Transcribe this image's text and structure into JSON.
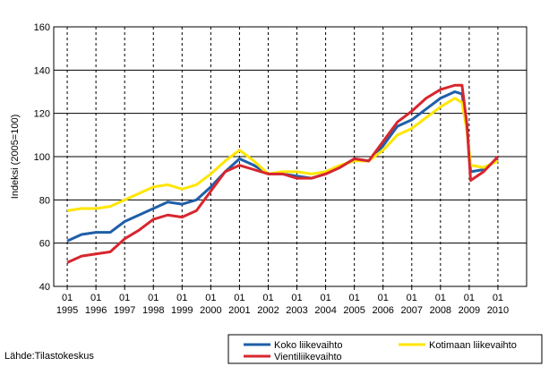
{
  "chart_data": {
    "type": "line",
    "y_label": "Indeksi (2005=100)",
    "source": "Lähde:Tilastokeskus",
    "x": [
      1995,
      1995.5,
      1996,
      1996.5,
      1997,
      1997.5,
      1998,
      1998.5,
      1999,
      1999.5,
      2000,
      2000.5,
      2001,
      2001.5,
      2002,
      2002.5,
      2003,
      2003.5,
      2004,
      2004.5,
      2005,
      2005.5,
      2006,
      2006.5,
      2007,
      2007.5,
      2008,
      2008.5,
      2008.75,
      2008.92,
      2009.05,
      2009.5,
      2010
    ],
    "series": [
      {
        "name": "Koko liikevaihto",
        "color": "#1f5fa8",
        "values": [
          61,
          64,
          65,
          65,
          70,
          73,
          76,
          79,
          78,
          80,
          86,
          93,
          99,
          96,
          92,
          92,
          91,
          90,
          92,
          95,
          99,
          98,
          105,
          114,
          117,
          122,
          127,
          130,
          129,
          115,
          93,
          94,
          99
        ]
      },
      {
        "name": "Kotimaan liikevaihto",
        "color": "#ffe600",
        "values": [
          75,
          76,
          76,
          77,
          80,
          83,
          86,
          87,
          85,
          87,
          92,
          98,
          103,
          98,
          92,
          93,
          93,
          92,
          93,
          96,
          98,
          98,
          103,
          110,
          113,
          118,
          123,
          127,
          125,
          112,
          96,
          95,
          98
        ]
      },
      {
        "name": "Vientiliikevaihto",
        "color": "#d8262e",
        "values": [
          51,
          54,
          55,
          56,
          62,
          66,
          71,
          73,
          72,
          75,
          84,
          93,
          96,
          94,
          92,
          92,
          90,
          90,
          92,
          95,
          99,
          98,
          107,
          116,
          121,
          127,
          131,
          133,
          133,
          115,
          89,
          93,
          100
        ]
      }
    ],
    "xlim": [
      1994.53,
      2011
    ],
    "xticks": [
      {
        "value": 1995,
        "label": "01\n1995"
      },
      {
        "value": 1996,
        "label": "01\n1996"
      },
      {
        "value": 1997,
        "label": "01\n1997"
      },
      {
        "value": 1998,
        "label": "01\n1998"
      },
      {
        "value": 1999,
        "label": "01\n1999"
      },
      {
        "value": 2000,
        "label": "01\n2000"
      },
      {
        "value": 2001,
        "label": "01\n2001"
      },
      {
        "value": 2002,
        "label": "01\n2002"
      },
      {
        "value": 2003,
        "label": "01\n2003"
      },
      {
        "value": 2004,
        "label": "01\n2004"
      },
      {
        "value": 2005,
        "label": "01\n2005"
      },
      {
        "value": 2006,
        "label": "01\n2006"
      },
      {
        "value": 2007,
        "label": "01\n2007"
      },
      {
        "value": 2008,
        "label": "01\n2008"
      },
      {
        "value": 2009,
        "label": "01\n2009"
      },
      {
        "value": 2010,
        "label": "01\n2010"
      }
    ],
    "ylim": [
      40,
      160
    ],
    "yticks": [
      40,
      60,
      80,
      100,
      120,
      140,
      160
    ],
    "grid": true
  }
}
